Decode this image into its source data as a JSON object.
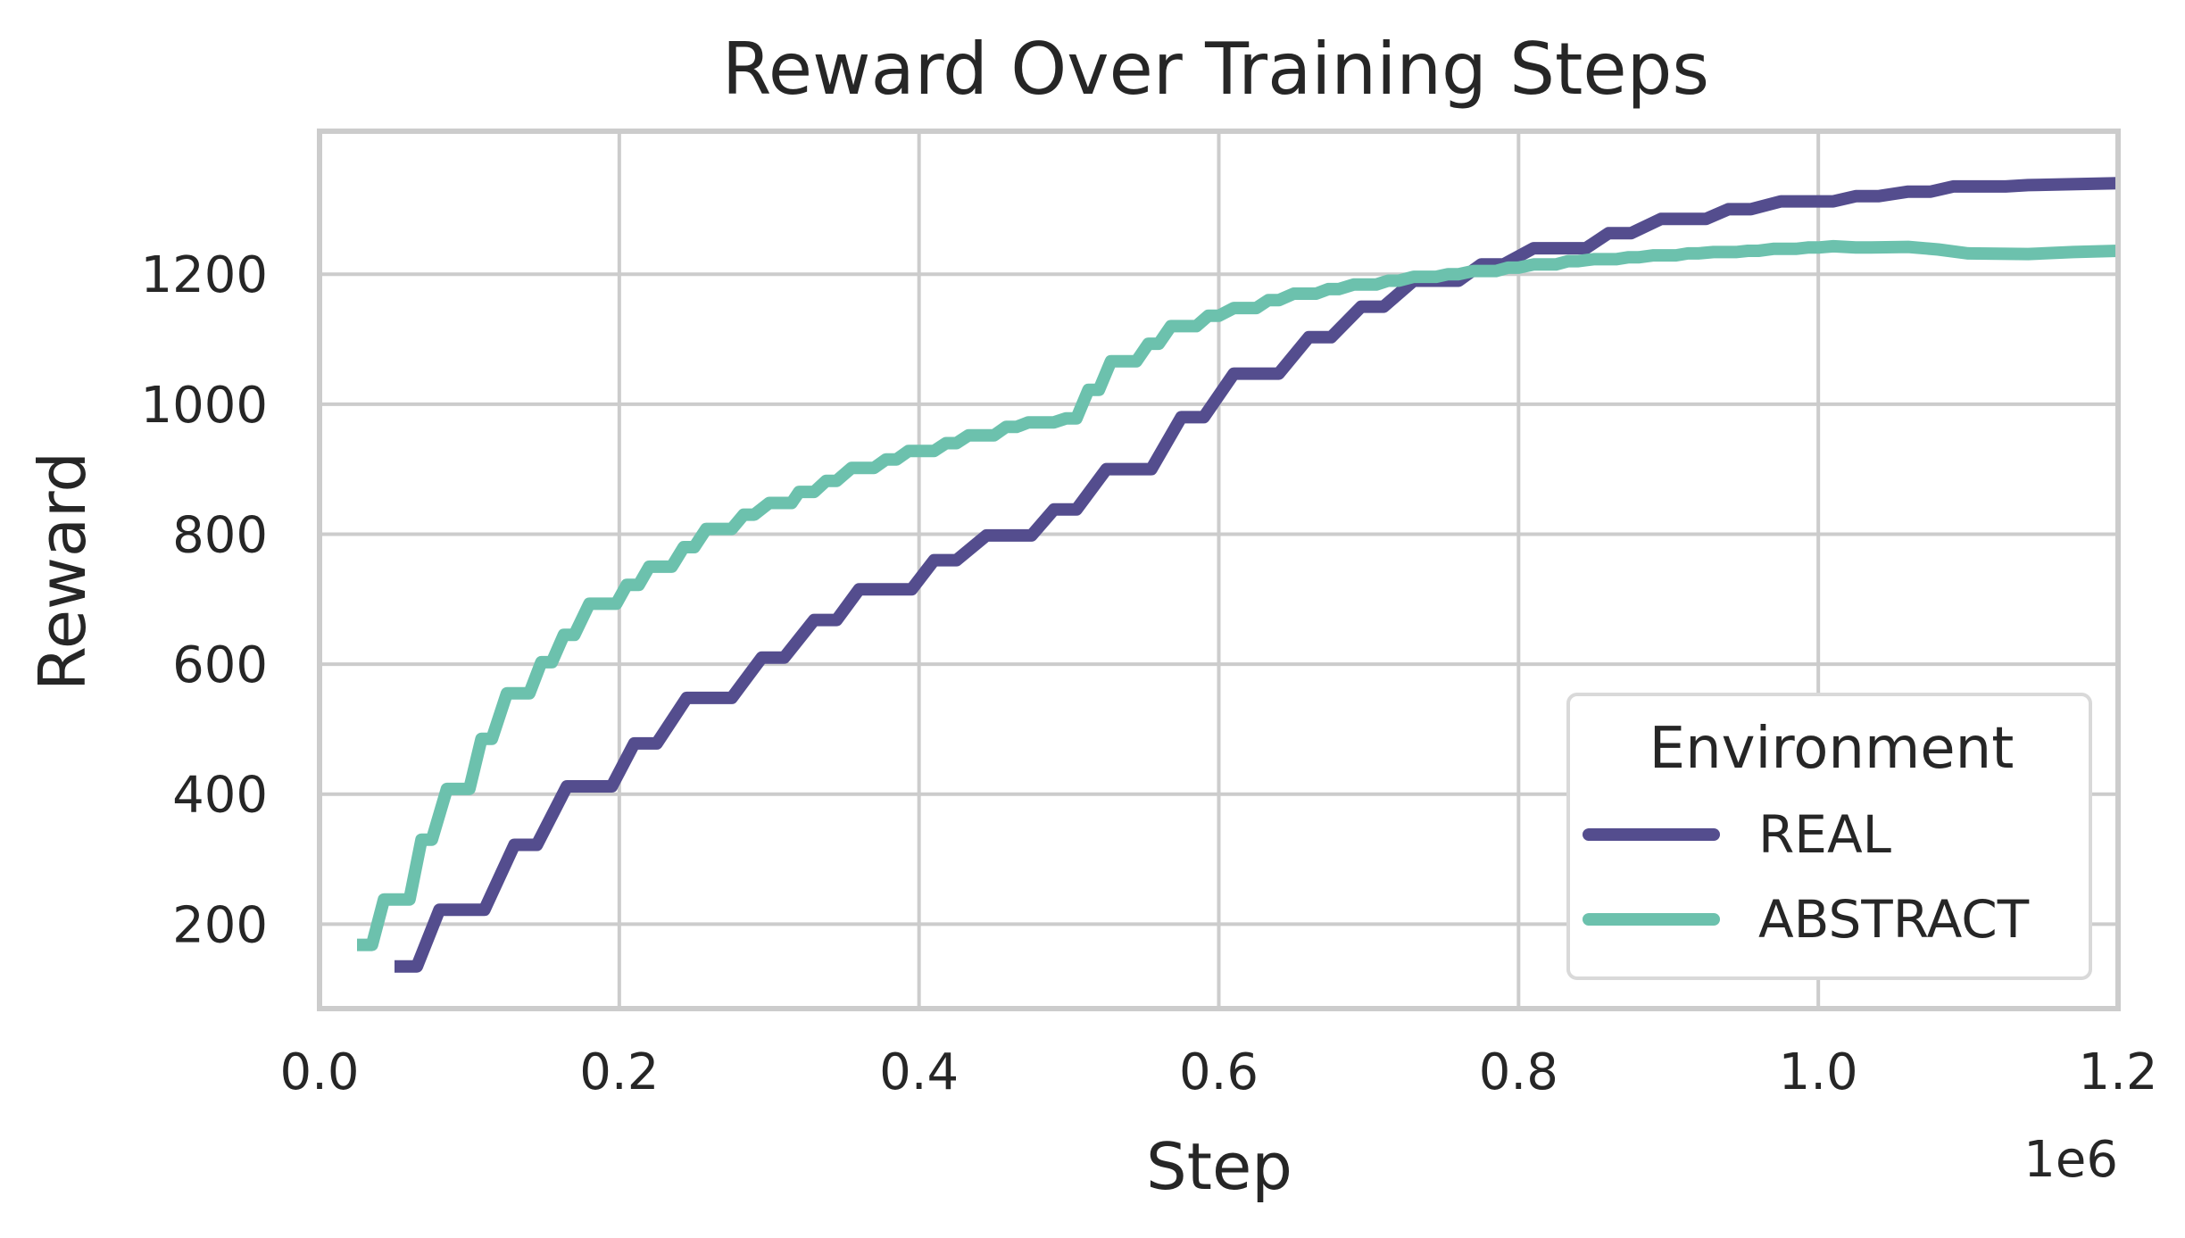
{
  "chart_data": {
    "type": "line",
    "title": "Reward Over Training Steps",
    "xlabel": "Step",
    "ylabel": "Reward",
    "x_offset_label": "1e6",
    "xlim": [
      0,
      1200000
    ],
    "ylim": [
      70,
      1420
    ],
    "xticks": [
      0,
      200000,
      400000,
      600000,
      800000,
      1000000,
      1200000
    ],
    "xtick_labels": [
      "0.0",
      "0.2",
      "0.4",
      "0.6",
      "0.8",
      "1.0",
      "1.2"
    ],
    "yticks": [
      200,
      400,
      600,
      800,
      1000,
      1200
    ],
    "ytick_labels": [
      "200",
      "400",
      "600",
      "800",
      "1000",
      "1200"
    ],
    "grid": true,
    "legend": {
      "title": "Environment",
      "placement": "bottom-right"
    },
    "series": [
      {
        "name": "REAL",
        "color": "#544d8e",
        "points": [
          [
            50000,
            135
          ],
          [
            65000,
            135
          ],
          [
            80000,
            222
          ],
          [
            110000,
            222
          ],
          [
            130000,
            322
          ],
          [
            145000,
            322
          ],
          [
            165000,
            412
          ],
          [
            195000,
            412
          ],
          [
            210000,
            478
          ],
          [
            225000,
            478
          ],
          [
            245000,
            548
          ],
          [
            275000,
            548
          ],
          [
            295000,
            610
          ],
          [
            310000,
            610
          ],
          [
            330000,
            668
          ],
          [
            345000,
            668
          ],
          [
            360000,
            715
          ],
          [
            395000,
            715
          ],
          [
            410000,
            760
          ],
          [
            425000,
            760
          ],
          [
            445000,
            798
          ],
          [
            475000,
            798
          ],
          [
            490000,
            838
          ],
          [
            505000,
            838
          ],
          [
            525000,
            900
          ],
          [
            555000,
            900
          ],
          [
            575000,
            980
          ],
          [
            590000,
            980
          ],
          [
            610000,
            1047
          ],
          [
            640000,
            1047
          ],
          [
            660000,
            1103
          ],
          [
            675000,
            1103
          ],
          [
            695000,
            1150
          ],
          [
            710000,
            1150
          ],
          [
            730000,
            1190
          ],
          [
            760000,
            1190
          ],
          [
            775000,
            1215
          ],
          [
            790000,
            1215
          ],
          [
            810000,
            1240
          ],
          [
            845000,
            1240
          ],
          [
            860000,
            1263
          ],
          [
            875000,
            1263
          ],
          [
            895000,
            1285
          ],
          [
            925000,
            1285
          ],
          [
            940000,
            1300
          ],
          [
            955000,
            1300
          ],
          [
            975000,
            1312
          ],
          [
            1010000,
            1312
          ],
          [
            1025000,
            1320
          ],
          [
            1040000,
            1320
          ],
          [
            1060000,
            1327
          ],
          [
            1075000,
            1327
          ],
          [
            1090000,
            1335
          ],
          [
            1125000,
            1335
          ],
          [
            1140000,
            1337
          ],
          [
            1200000,
            1340
          ]
        ]
      },
      {
        "name": "ABSTRACT",
        "color": "#6cc1ad",
        "points": [
          [
            25000,
            168
          ],
          [
            35000,
            168
          ],
          [
            43000,
            238
          ],
          [
            60000,
            238
          ],
          [
            68000,
            330
          ],
          [
            75000,
            330
          ],
          [
            85000,
            408
          ],
          [
            100000,
            408
          ],
          [
            108000,
            485
          ],
          [
            115000,
            485
          ],
          [
            125000,
            555
          ],
          [
            140000,
            555
          ],
          [
            148000,
            603
          ],
          [
            155000,
            603
          ],
          [
            163000,
            645
          ],
          [
            170000,
            645
          ],
          [
            180000,
            693
          ],
          [
            198000,
            693
          ],
          [
            205000,
            722
          ],
          [
            213000,
            722
          ],
          [
            220000,
            750
          ],
          [
            235000,
            750
          ],
          [
            243000,
            780
          ],
          [
            250000,
            780
          ],
          [
            258000,
            808
          ],
          [
            275000,
            808
          ],
          [
            283000,
            830
          ],
          [
            290000,
            830
          ],
          [
            300000,
            848
          ],
          [
            315000,
            848
          ],
          [
            320000,
            865
          ],
          [
            330000,
            865
          ],
          [
            338000,
            882
          ],
          [
            345000,
            882
          ],
          [
            355000,
            902
          ],
          [
            370000,
            902
          ],
          [
            378000,
            915
          ],
          [
            385000,
            915
          ],
          [
            393000,
            928
          ],
          [
            410000,
            928
          ],
          [
            418000,
            940
          ],
          [
            425000,
            940
          ],
          [
            433000,
            952
          ],
          [
            450000,
            952
          ],
          [
            458000,
            965
          ],
          [
            465000,
            965
          ],
          [
            473000,
            972
          ],
          [
            490000,
            972
          ],
          [
            498000,
            978
          ],
          [
            505000,
            978
          ],
          [
            513000,
            1022
          ],
          [
            520000,
            1022
          ],
          [
            528000,
            1066
          ],
          [
            545000,
            1066
          ],
          [
            553000,
            1093
          ],
          [
            560000,
            1093
          ],
          [
            568000,
            1120
          ],
          [
            585000,
            1120
          ],
          [
            593000,
            1136
          ],
          [
            600000,
            1136
          ],
          [
            610000,
            1148
          ],
          [
            625000,
            1148
          ],
          [
            633000,
            1160
          ],
          [
            640000,
            1160
          ],
          [
            650000,
            1170
          ],
          [
            665000,
            1170
          ],
          [
            673000,
            1177
          ],
          [
            680000,
            1177
          ],
          [
            690000,
            1184
          ],
          [
            705000,
            1184
          ],
          [
            713000,
            1190
          ],
          [
            720000,
            1190
          ],
          [
            730000,
            1196
          ],
          [
            745000,
            1196
          ],
          [
            753000,
            1200
          ],
          [
            760000,
            1200
          ],
          [
            770000,
            1205
          ],
          [
            785000,
            1205
          ],
          [
            793000,
            1210
          ],
          [
            800000,
            1210
          ],
          [
            810000,
            1215
          ],
          [
            825000,
            1215
          ],
          [
            833000,
            1220
          ],
          [
            840000,
            1220
          ],
          [
            850000,
            1223
          ],
          [
            865000,
            1223
          ],
          [
            873000,
            1226
          ],
          [
            880000,
            1226
          ],
          [
            890000,
            1229
          ],
          [
            905000,
            1229
          ],
          [
            913000,
            1232
          ],
          [
            920000,
            1232
          ],
          [
            930000,
            1234
          ],
          [
            945000,
            1234
          ],
          [
            953000,
            1236
          ],
          [
            960000,
            1236
          ],
          [
            970000,
            1239
          ],
          [
            985000,
            1239
          ],
          [
            993000,
            1241
          ],
          [
            1000000,
            1241
          ],
          [
            1010000,
            1243
          ],
          [
            1025000,
            1241
          ],
          [
            1035000,
            1241
          ],
          [
            1060000,
            1242
          ],
          [
            1080000,
            1238
          ],
          [
            1100000,
            1232
          ],
          [
            1140000,
            1231
          ],
          [
            1170000,
            1234
          ],
          [
            1200000,
            1236
          ]
        ]
      }
    ]
  }
}
